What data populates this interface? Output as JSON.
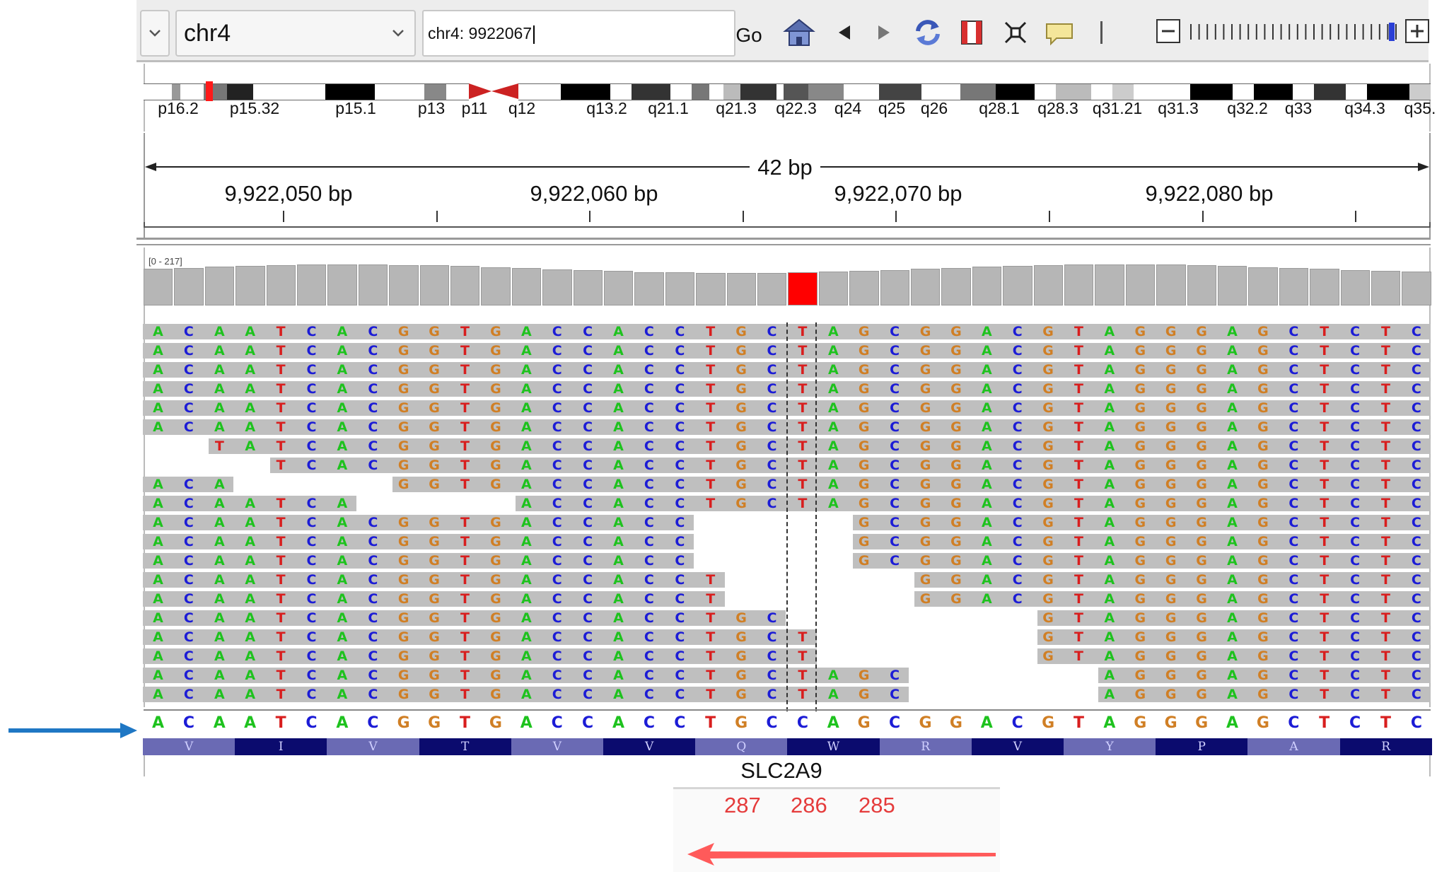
{
  "toolbar": {
    "genome_value": "",
    "chrom_value": "chr4",
    "locus_value": "chr4: 9922067",
    "go_label": "Go",
    "icons": [
      "home-icon",
      "back-icon",
      "forward-icon",
      "refresh-icon",
      "region-icon",
      "fit-icon",
      "popup-icon",
      "zoom-out-icon",
      "zoom-slider",
      "zoom-in-icon"
    ]
  },
  "ideogram": {
    "bands": [
      "p16.2",
      "p15.32",
      "p15.1",
      "p13",
      "p11",
      "q12",
      "q13.2",
      "q21.1",
      "q21.3",
      "q22.3",
      "q24",
      "q25",
      "q26",
      "q28.1",
      "q28.3",
      "q31.21",
      "q31.3",
      "q32.2",
      "q33",
      "q34.3",
      "q35."
    ]
  },
  "ruler": {
    "span_label": "42 bp",
    "positions": [
      "9,922,050 bp",
      "9,922,060 bp",
      "9,922,070 bp",
      "9,922,080 bp"
    ]
  },
  "coverage": {
    "range_label": "[0 - 217]"
  },
  "reference_sequence": "ACAATCACGGTGACCACCTGCCAGCGGACGTAGGGAGCTCTC",
  "read_rows": [
    {
      "start": 0,
      "bases": "ACAATCACGGTGACCACCTGCTAGCGGACGTAGGGAGCTCTC"
    },
    {
      "start": 0,
      "bases": "ACAATCACGGTGACCACCTGCTAGCGGACGTAGGGAGCTCTC"
    },
    {
      "start": 0,
      "bases": "ACAATCACGGTGACCACCTGCTAGCGGACGTAGGGAGCTCTC"
    },
    {
      "start": 0,
      "bases": "ACAATCACGGTGACCACCTGCTAGCGGACGTAGGGAGCTCTC"
    },
    {
      "start": 0,
      "bases": "ACAATCACGGTGACCACCTGCTAGCGGACGTAGGGAGCTCTC"
    },
    {
      "start": 0,
      "bases": "ACAATCACGGTGACCACCTGCTAGCGGACGTAGGGAGCTCTC"
    },
    {
      "start": 2,
      "bases": "TATCACGGTGACCACCTGCTAGCGGACGTAGGGAGCTCTC"
    },
    {
      "start": 4,
      "bases": "TCACGGTGACCACCTGCTAGCGGACGTAGGGAGCTCTC"
    },
    {
      "start": 0,
      "bases": "ACA"
    },
    {
      "start": 8,
      "bases": "GGTGACCACCTGCTAGCGGACGTAGGGAGCTCTC"
    },
    {
      "start": 0,
      "bases": "ACAATCA"
    },
    {
      "start": 12,
      "bases": "ACCACCTGCTAGCGGACGTAGGGAGCTCTC"
    },
    {
      "start": 0,
      "bases": "ACAATCACGGTGACCACC"
    },
    {
      "start": 23,
      "bases": "GCGGACGTAGGGAGCTCTC"
    },
    {
      "start": 0,
      "bases": "ACAATCACGGTGACCACC"
    },
    {
      "start": 23,
      "bases": "GCGGACGTAGGGAGCTCTC"
    },
    {
      "start": 0,
      "bases": "ACAATCACGGTGACCACC"
    },
    {
      "start": 23,
      "bases": "GCGGACGTAGGGAGCTCTC"
    },
    {
      "start": 0,
      "bases": "ACAATCACGGTGACCACCT"
    },
    {
      "start": 25,
      "bases": "GGACGTAGGGAGCTCTC"
    },
    {
      "start": 0,
      "bases": "ACAATCACGGTGACCACCT"
    },
    {
      "start": 25,
      "bases": "GGACGTAGGGAGCTCTC"
    },
    {
      "start": 0,
      "bases": "ACAATCACGGTGACCACCTGC"
    },
    {
      "start": 29,
      "bases": "GTAGGGAGCTCTC"
    },
    {
      "start": 0,
      "bases": "ACAATCACGGTGACCACCTGCT"
    },
    {
      "start": 29,
      "bases": "GTAGGGAGCTCTC"
    },
    {
      "start": 0,
      "bases": "ACAATCACGGTGACCACCTGCT"
    },
    {
      "start": 29,
      "bases": "GTAGGGAGCTCTC"
    },
    {
      "start": 0,
      "bases": "ACAATCACGGTGACCACCTGCTAGC"
    },
    {
      "start": 31,
      "bases": "AGGGAGCTCTC"
    },
    {
      "start": 0,
      "bases": "ACAATCACGGTGACCACCTGCTAGC"
    },
    {
      "start": 31,
      "bases": "AGGGAGCTCTC"
    }
  ],
  "translation": [
    "V",
    "I",
    "V",
    "T",
    "V",
    "V",
    "Q",
    "W",
    "R",
    "V",
    "Y",
    "P",
    "A",
    "R"
  ],
  "gene": {
    "name": "SLC2A9"
  },
  "annotation": {
    "numbers": [
      "287",
      "286",
      "285"
    ]
  },
  "colors": {
    "A": "#1ec21e",
    "C": "#1c1cd6",
    "G": "#d07f25",
    "T": "#d81e1e",
    "mismatch_bar": "#ff0000",
    "pointer_arrow": "#1f77c4",
    "direction_arrow": "#ff5a5a"
  }
}
